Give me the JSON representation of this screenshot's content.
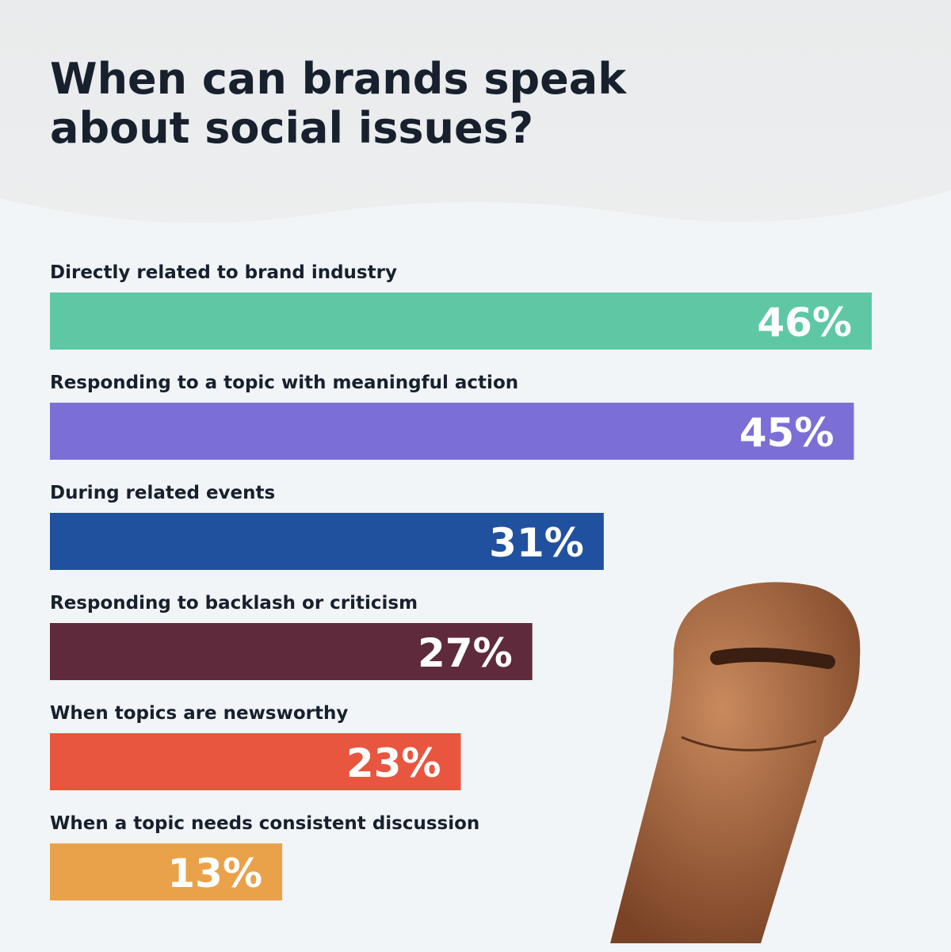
{
  "chart_data": {
    "type": "bar",
    "orientation": "horizontal",
    "title": "When can brands speak about social issues?",
    "categories": [
      "Directly related to brand industry",
      "Responding to a topic with meaningful action",
      "During related events",
      "Responding to backlash or criticism",
      "When topics are newsworthy",
      "When a topic needs consistent discussion"
    ],
    "values": [
      46,
      45,
      31,
      27,
      23,
      13
    ],
    "value_labels": [
      "46%",
      "45%",
      "31%",
      "27%",
      "23%",
      "13%"
    ],
    "colors": [
      "#5ec8a4",
      "#7b6fd6",
      "#20519e",
      "#5e2a3c",
      "#e8563f",
      "#e9a24a"
    ]
  }
}
